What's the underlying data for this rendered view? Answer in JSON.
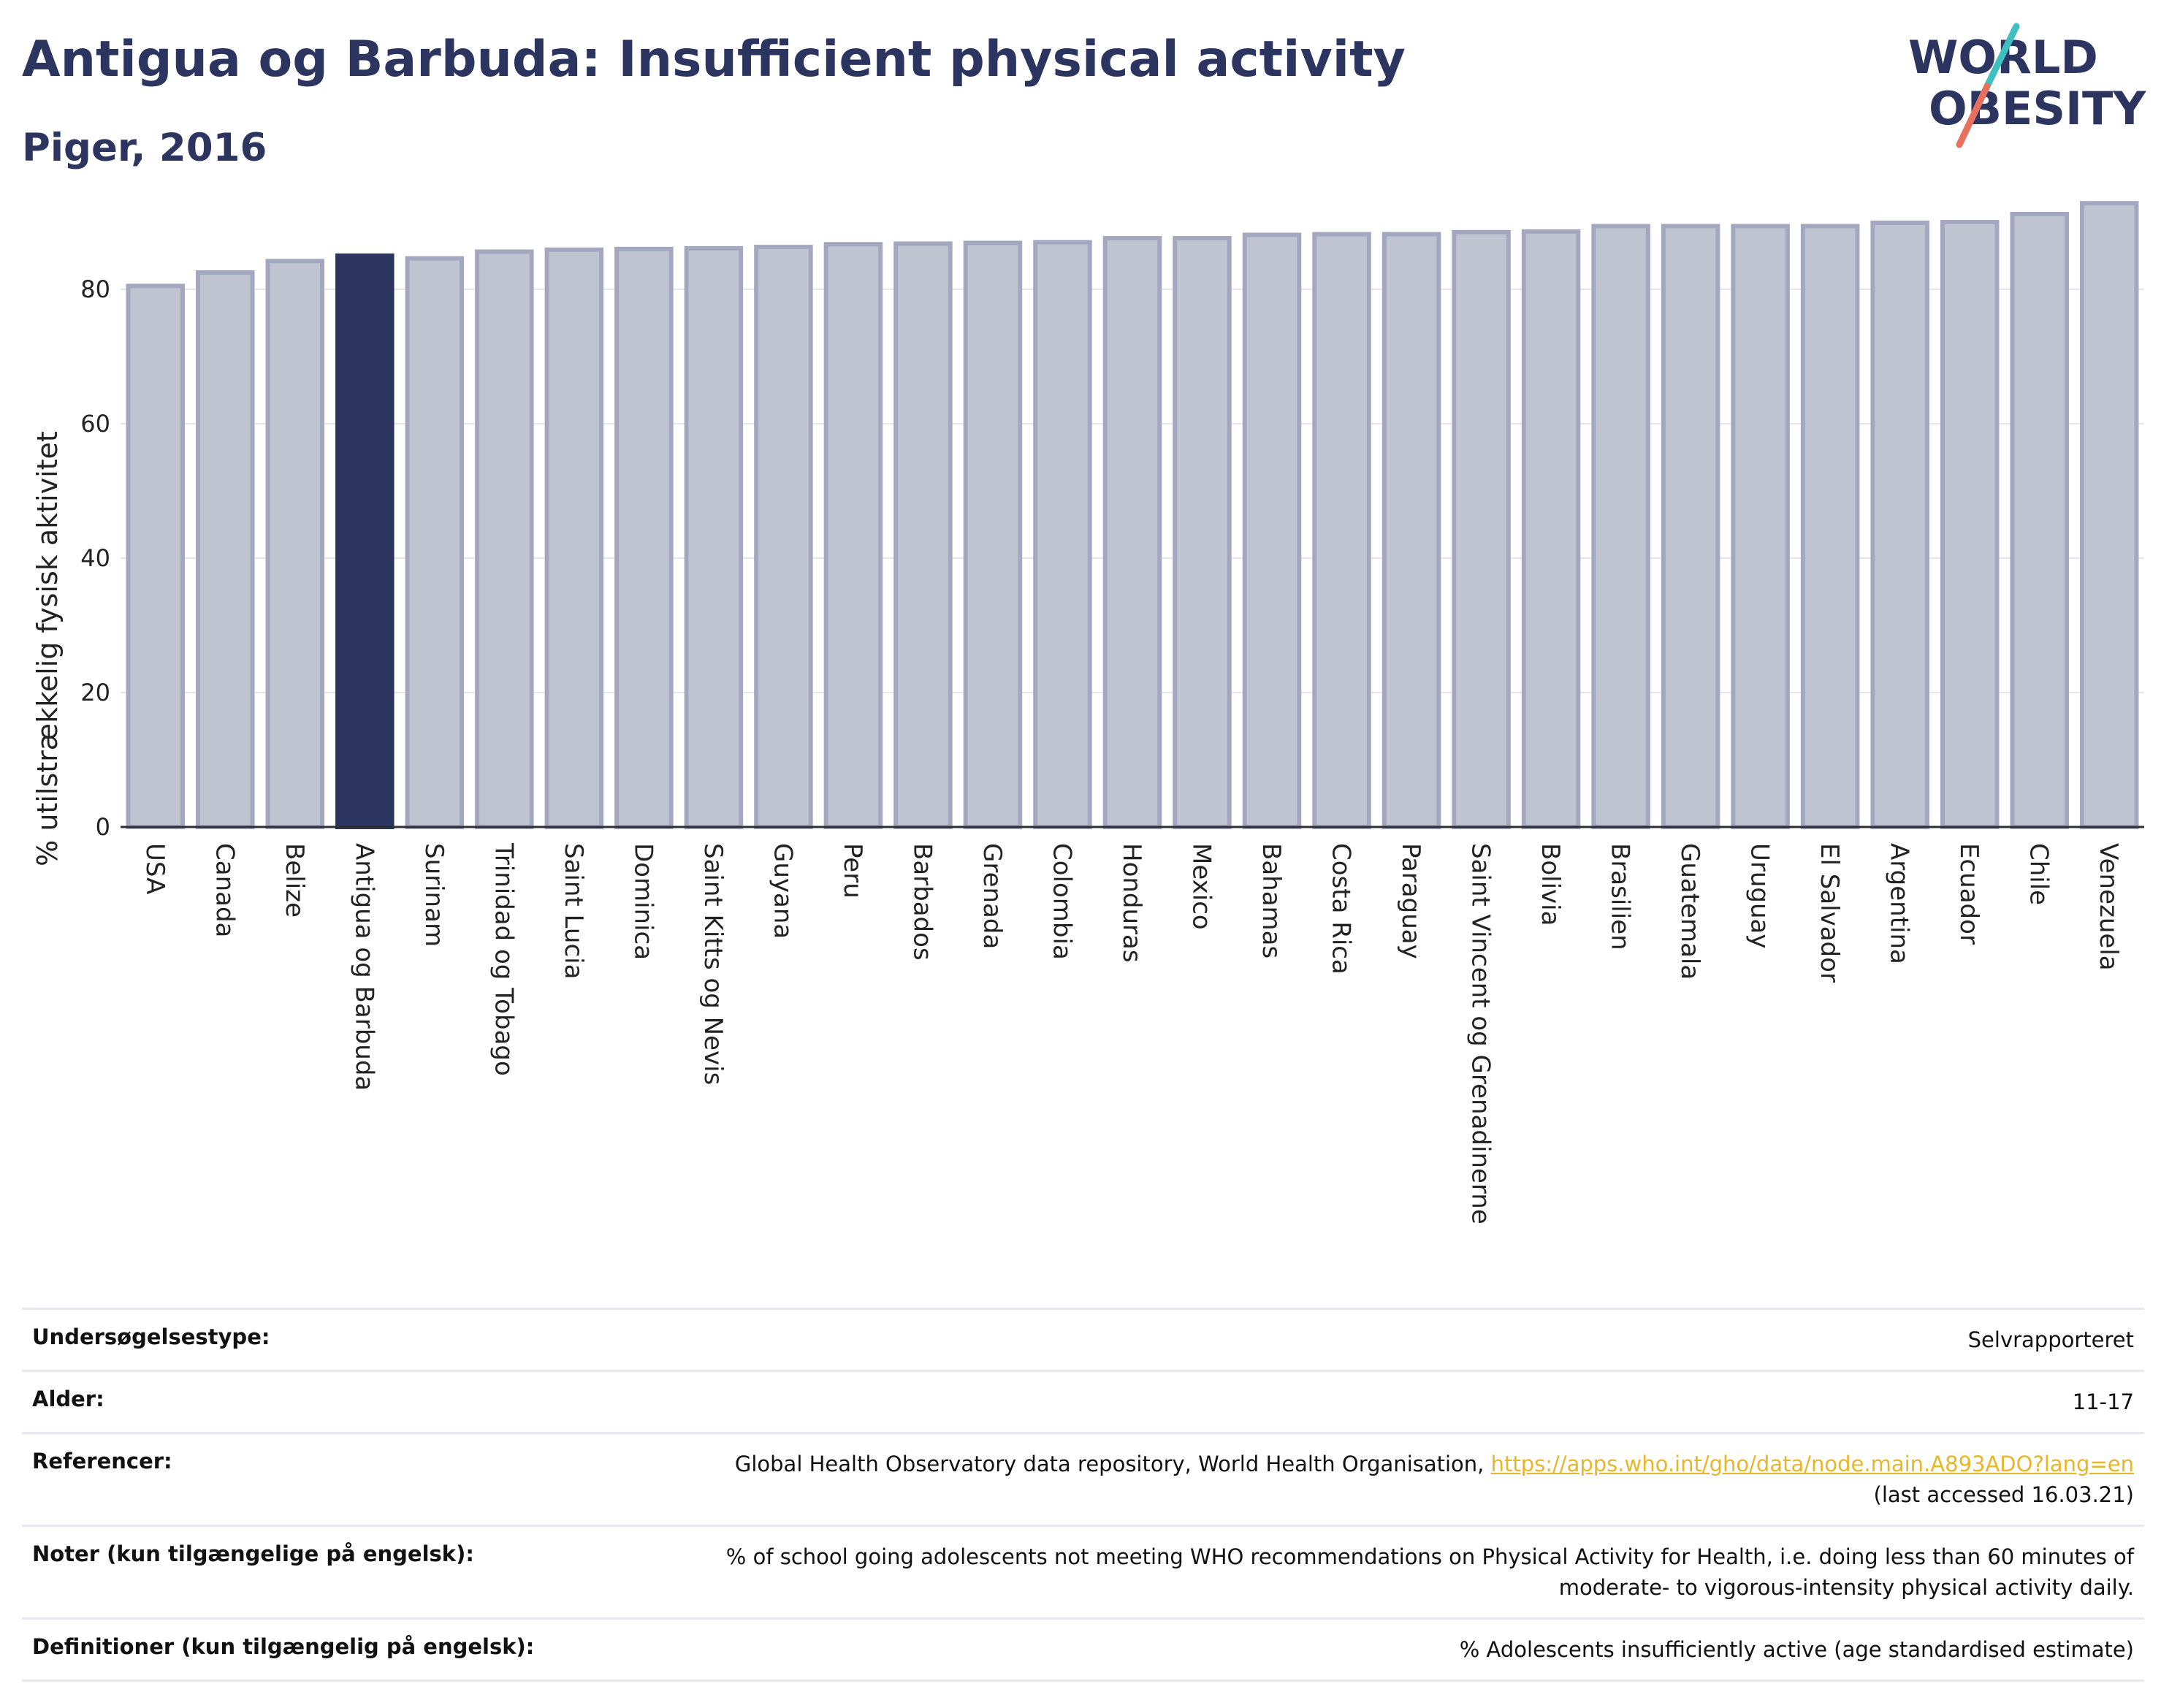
{
  "header": {
    "title": "Antigua og Barbuda: Insufficient physical activity",
    "subtitle": "Piger, 2016"
  },
  "logo": {
    "line1": "WORLD",
    "line2": "OBESITY"
  },
  "colors": {
    "highlight": "#2b3560",
    "bar": "#c0c4d1",
    "bar_edge": "#a3a8c0",
    "title": "#2b3560",
    "link": "#e8b629"
  },
  "chart_data": {
    "type": "bar",
    "title": "Antigua og Barbuda: Insufficient physical activity",
    "subtitle": "Piger, 2016",
    "ylabel": "% utilstrækkelig fysisk aktivitet",
    "xlabel": "",
    "ylim": [
      0,
      95
    ],
    "yticks": [
      0,
      20,
      40,
      60,
      80
    ],
    "grid": true,
    "highlight": "Antigua og Barbuda",
    "categories": [
      "USA",
      "Canada",
      "Belize",
      "Antigua og Barbuda",
      "Surinam",
      "Trinidad og Tobago",
      "Saint Lucia",
      "Dominica",
      "Saint Kitts og Nevis",
      "Guyana",
      "Peru",
      "Barbados",
      "Grenada",
      "Colombia",
      "Honduras",
      "Mexico",
      "Bahamas",
      "Costa Rica",
      "Paraguay",
      "Saint Vincent og Grenadinerne",
      "Bolivia",
      "Brasilien",
      "Guatemala",
      "Uruguay",
      "El Salvador",
      "Argentina",
      "Ecuador",
      "Chile",
      "Venezuela"
    ],
    "values": [
      80.5,
      82.5,
      84.2,
      85.0,
      84.6,
      85.6,
      85.9,
      86.0,
      86.1,
      86.3,
      86.7,
      86.8,
      86.9,
      87.0,
      87.6,
      87.6,
      88.1,
      88.2,
      88.2,
      88.5,
      88.6,
      89.4,
      89.4,
      89.4,
      89.4,
      89.9,
      90.0,
      91.2,
      92.8
    ]
  },
  "info": {
    "survey_type_label": "Undersøgelsestype:",
    "survey_type_value": "Selvrapporteret",
    "age_label": "Alder:",
    "age_value": "11-17",
    "refs_label": "Referencer:",
    "refs_text": "Global Health Observatory data repository, World Health Organisation, ",
    "refs_link": "https://apps.who.int/gho/data/node.main.A893ADO?lang=en",
    "refs_accessed": "(last accessed 16.03.21)",
    "notes_label": "Noter (kun tilgængelige på engelsk):",
    "notes_line1": "% of school going adolescents not meeting WHO recommendations on Physical Activity for Health, i.e. doing less than 60 minutes of",
    "notes_line2": "moderate- to vigorous-intensity physical activity daily.",
    "defs_label": "Definitioner (kun tilgængelig på engelsk):",
    "defs_value": "% Adolescents insufficiently active (age standardised estimate)"
  }
}
